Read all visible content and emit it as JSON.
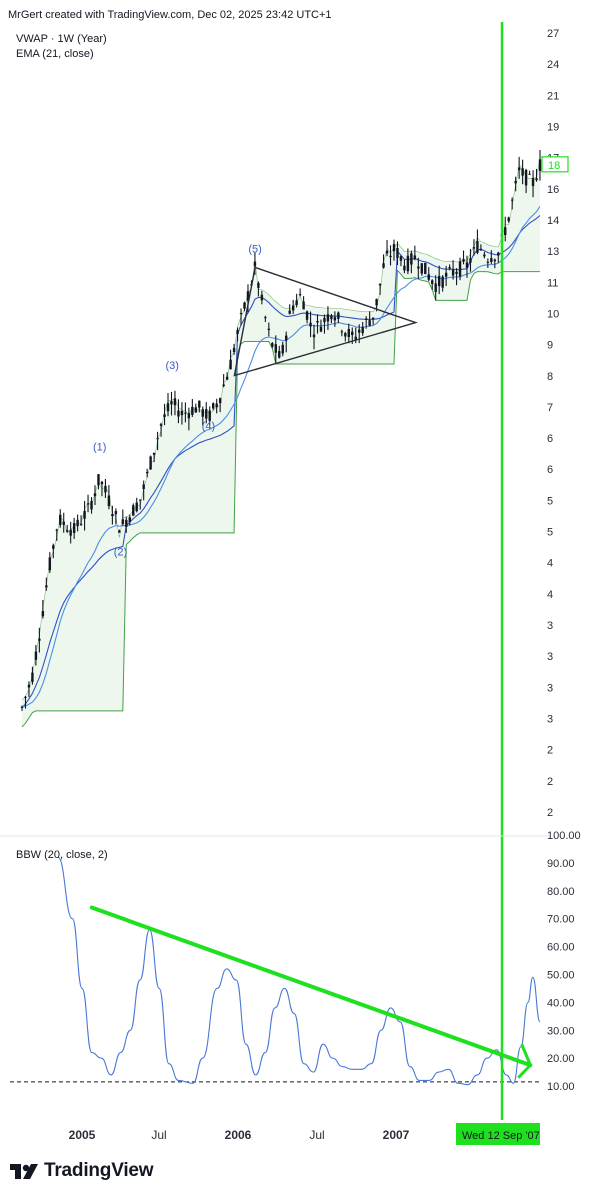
{
  "header": {
    "watermark": "MrGert created with TradingView.com, Dec 02, 2025 23:42 UTC+1",
    "indicator_1": "VWAP · 1W (Year)",
    "indicator_2": "EMA (21, close)",
    "indicator_3": "BBW (20, close, 2)"
  },
  "brand": {
    "name": "TradingView",
    "icon": "tradingview-logo-icon"
  },
  "colors": {
    "price": "#131722",
    "vwap": "#2f50c9",
    "ema": "#4d8ee8",
    "band": "#43a047",
    "band_fill": "#e8f5e9",
    "bbw_line": "#4a78d6",
    "annotation": "#1fe01f",
    "triangle": "#2a2e39",
    "wave_labels": "#3a5cc7",
    "axis_text": "#2a2e39"
  },
  "chart_data": [
    {
      "type": "candlestick",
      "title": "",
      "timeframe": "1W",
      "y_scale": "log",
      "ylim": [
        1.55,
        30
      ],
      "y_tick_labels": [
        "27",
        "24",
        "21",
        "19",
        "17",
        "16",
        "14",
        "13",
        "11",
        "10",
        "9",
        "8",
        "7",
        "6",
        "6",
        "5",
        "5",
        "4",
        "4",
        "3",
        "3",
        "3",
        "3",
        "2",
        "2",
        "2"
      ],
      "current_price_label": "18",
      "x_tick_labels": [
        "2005",
        "Jul",
        "2006",
        "Jul",
        "2007"
      ],
      "date_highlight": "Wed 12 Sep '07",
      "series": [
        {
          "name": "VWAP · 1W (Year)",
          "kind": "line"
        },
        {
          "name": "EMA (21, close)",
          "kind": "line"
        }
      ],
      "close_path": [
        {
          "t": 0.0,
          "v": 2.3
        },
        {
          "t": 0.02,
          "v": 2.6
        },
        {
          "t": 0.035,
          "v": 3.1
        },
        {
          "t": 0.05,
          "v": 3.8
        },
        {
          "t": 0.07,
          "v": 4.7
        },
        {
          "t": 0.1,
          "v": 4.5
        },
        {
          "t": 0.13,
          "v": 4.9
        },
        {
          "t": 0.15,
          "v": 5.5
        },
        {
          "t": 0.17,
          "v": 5.0
        },
        {
          "t": 0.19,
          "v": 4.55
        },
        {
          "t": 0.21,
          "v": 4.8
        },
        {
          "t": 0.23,
          "v": 5.1
        },
        {
          "t": 0.25,
          "v": 5.9
        },
        {
          "t": 0.27,
          "v": 6.8
        },
        {
          "t": 0.29,
          "v": 7.3
        },
        {
          "t": 0.31,
          "v": 7.0
        },
        {
          "t": 0.34,
          "v": 7.2
        },
        {
          "t": 0.36,
          "v": 6.9
        },
        {
          "t": 0.38,
          "v": 7.4
        },
        {
          "t": 0.4,
          "v": 8.3
        },
        {
          "t": 0.42,
          "v": 9.8
        },
        {
          "t": 0.44,
          "v": 11.3
        },
        {
          "t": 0.45,
          "v": 12.2
        },
        {
          "t": 0.465,
          "v": 10.5
        },
        {
          "t": 0.48,
          "v": 9.2
        },
        {
          "t": 0.5,
          "v": 8.6
        },
        {
          "t": 0.52,
          "v": 10.5
        },
        {
          "t": 0.54,
          "v": 11.0
        },
        {
          "t": 0.56,
          "v": 9.6
        },
        {
          "t": 0.58,
          "v": 9.9
        },
        {
          "t": 0.6,
          "v": 10.4
        },
        {
          "t": 0.62,
          "v": 9.7
        },
        {
          "t": 0.64,
          "v": 9.3
        },
        {
          "t": 0.66,
          "v": 9.8
        },
        {
          "t": 0.68,
          "v": 10.2
        },
        {
          "t": 0.7,
          "v": 12.5
        },
        {
          "t": 0.72,
          "v": 13.1
        },
        {
          "t": 0.74,
          "v": 12.3
        },
        {
          "t": 0.76,
          "v": 12.7
        },
        {
          "t": 0.78,
          "v": 12.0
        },
        {
          "t": 0.8,
          "v": 11.4
        },
        {
          "t": 0.82,
          "v": 11.8
        },
        {
          "t": 0.84,
          "v": 12.1
        },
        {
          "t": 0.86,
          "v": 12.3
        },
        {
          "t": 0.88,
          "v": 13.3
        },
        {
          "t": 0.9,
          "v": 12.7
        },
        {
          "t": 0.92,
          "v": 12.9
        },
        {
          "t": 0.94,
          "v": 14.8
        },
        {
          "t": 0.96,
          "v": 17.6
        },
        {
          "t": 0.975,
          "v": 17.1
        },
        {
          "t": 0.985,
          "v": 16.7
        },
        {
          "t": 1.0,
          "v": 18.0
        }
      ],
      "wave_labels": [
        {
          "text": "(1)",
          "t": 0.15,
          "v": 6.1
        },
        {
          "text": "(2)",
          "t": 0.19,
          "v": 4.1
        },
        {
          "text": "(3)",
          "t": 0.29,
          "v": 8.3
        },
        {
          "text": "(4)",
          "t": 0.36,
          "v": 6.6
        },
        {
          "text": "(5)",
          "t": 0.45,
          "v": 12.9
        }
      ],
      "triangle": [
        {
          "t": 0.45,
          "v": 12.2
        },
        {
          "t": 0.76,
          "v": 9.9
        },
        {
          "t": 0.41,
          "v": 8.1
        }
      ]
    },
    {
      "type": "line",
      "title": "",
      "series_name": "BBW (20, close, 2)",
      "ylim": [
        5,
        100
      ],
      "y_tick_labels": [
        "100.00",
        "90.00",
        "80.00",
        "70.00",
        "60.00",
        "50.00",
        "40.00",
        "30.00",
        "20.00",
        "10.00"
      ],
      "dashed_level": 11.5,
      "points": [
        {
          "t": 0.0,
          "v": 92
        },
        {
          "t": 0.03,
          "v": 70
        },
        {
          "t": 0.05,
          "v": 45
        },
        {
          "t": 0.07,
          "v": 22
        },
        {
          "t": 0.09,
          "v": 20
        },
        {
          "t": 0.11,
          "v": 14
        },
        {
          "t": 0.13,
          "v": 22
        },
        {
          "t": 0.15,
          "v": 30
        },
        {
          "t": 0.17,
          "v": 48
        },
        {
          "t": 0.19,
          "v": 66
        },
        {
          "t": 0.21,
          "v": 45
        },
        {
          "t": 0.23,
          "v": 18
        },
        {
          "t": 0.25,
          "v": 12
        },
        {
          "t": 0.28,
          "v": 11
        },
        {
          "t": 0.3,
          "v": 20
        },
        {
          "t": 0.33,
          "v": 45
        },
        {
          "t": 0.35,
          "v": 52
        },
        {
          "t": 0.37,
          "v": 48
        },
        {
          "t": 0.39,
          "v": 25
        },
        {
          "t": 0.41,
          "v": 14
        },
        {
          "t": 0.43,
          "v": 22
        },
        {
          "t": 0.45,
          "v": 38
        },
        {
          "t": 0.47,
          "v": 45
        },
        {
          "t": 0.49,
          "v": 36
        },
        {
          "t": 0.51,
          "v": 18
        },
        {
          "t": 0.53,
          "v": 15
        },
        {
          "t": 0.55,
          "v": 25
        },
        {
          "t": 0.57,
          "v": 20
        },
        {
          "t": 0.59,
          "v": 17
        },
        {
          "t": 0.61,
          "v": 16
        },
        {
          "t": 0.63,
          "v": 16
        },
        {
          "t": 0.65,
          "v": 18
        },
        {
          "t": 0.67,
          "v": 30
        },
        {
          "t": 0.69,
          "v": 38
        },
        {
          "t": 0.71,
          "v": 33
        },
        {
          "t": 0.73,
          "v": 17
        },
        {
          "t": 0.75,
          "v": 12
        },
        {
          "t": 0.77,
          "v": 12
        },
        {
          "t": 0.79,
          "v": 15
        },
        {
          "t": 0.81,
          "v": 16
        },
        {
          "t": 0.83,
          "v": 11
        },
        {
          "t": 0.85,
          "v": 10.5
        },
        {
          "t": 0.87,
          "v": 14
        },
        {
          "t": 0.89,
          "v": 20
        },
        {
          "t": 0.91,
          "v": 23
        },
        {
          "t": 0.93,
          "v": 14
        },
        {
          "t": 0.945,
          "v": 11
        },
        {
          "t": 0.96,
          "v": 24
        },
        {
          "t": 0.975,
          "v": 40
        },
        {
          "t": 0.985,
          "v": 49
        },
        {
          "t": 1.0,
          "v": 33
        }
      ],
      "trendline": [
        {
          "t": 0.07,
          "v": 74
        },
        {
          "t": 0.98,
          "v": 17.5
        }
      ],
      "arrow_tip": [
        {
          "t": 0.955,
          "v": 13
        },
        {
          "t": 0.98,
          "v": 17.5
        },
        {
          "t": 0.962,
          "v": 25
        }
      ]
    }
  ]
}
